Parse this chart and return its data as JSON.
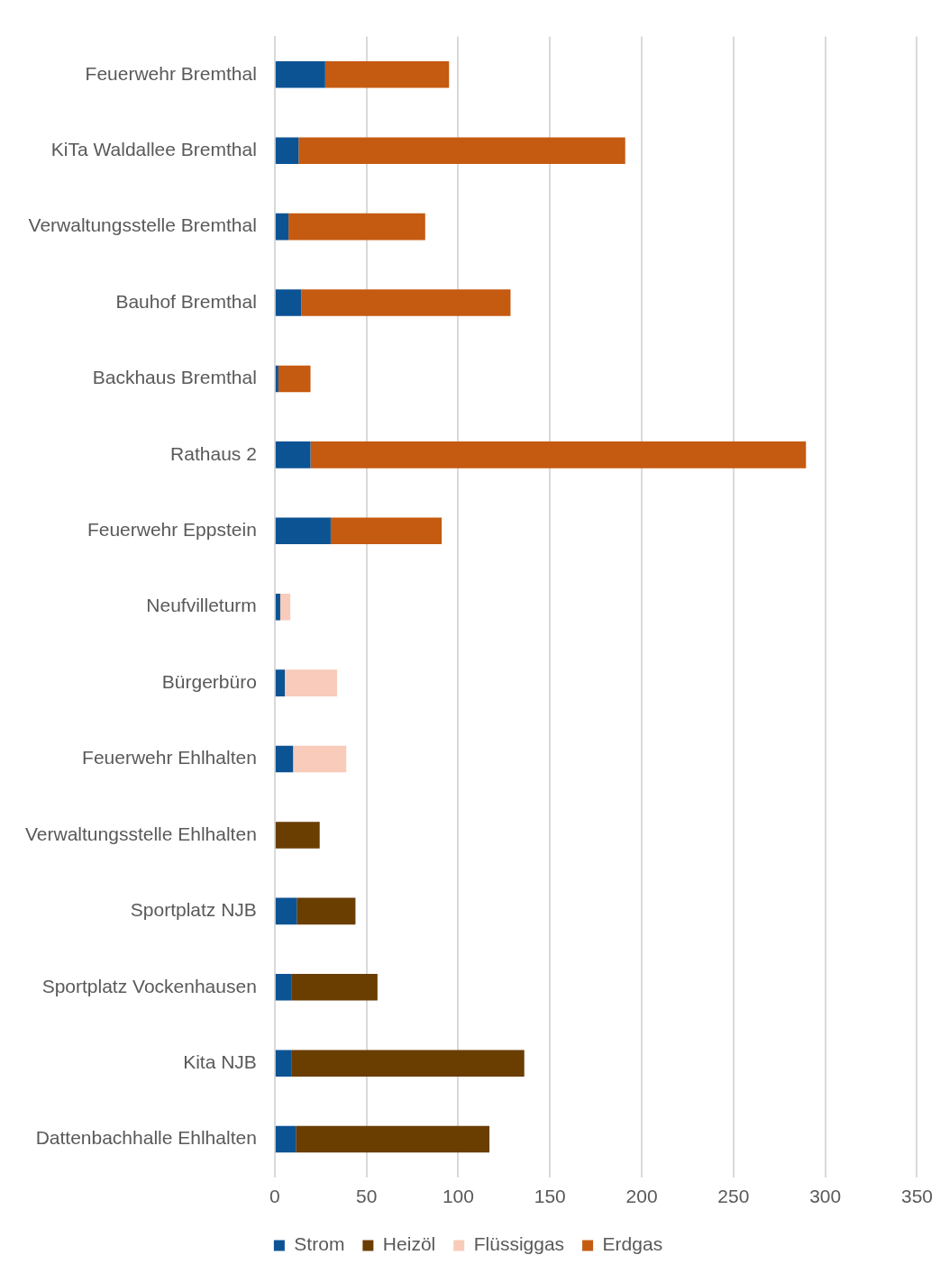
{
  "chart_data": {
    "type": "bar",
    "orientation": "horizontal",
    "stacked": true,
    "categories": [
      "Feuerwehr Bremthal",
      "KiTa Waldallee Bremthal",
      "Verwaltungsstelle Bremthal",
      "Bauhof Bremthal",
      "Backhaus Bremthal",
      "Rathaus 2",
      "Feuerwehr Eppstein",
      "Neufvilleturm",
      "Bürgerbüro",
      "Feuerwehr Ehlhalten",
      "Verwaltungsstelle Ehlhalten",
      "Sportplatz NJB",
      "Sportplatz Vockenhausen",
      "Kita NJB",
      "Dattenbachhalle Ehlhalten"
    ],
    "series": [
      {
        "name": "Strom",
        "color": "#0c5394",
        "values": [
          27.5,
          13,
          7.5,
          14.5,
          2,
          19.5,
          30.5,
          3,
          5.5,
          10,
          null,
          12,
          9,
          9,
          11.5
        ]
      },
      {
        "name": "Heizöl",
        "color": "#6a3d00",
        "values": [
          null,
          null,
          null,
          null,
          null,
          null,
          null,
          null,
          null,
          null,
          24.5,
          32,
          47,
          127,
          105.5
        ]
      },
      {
        "name": "Flüssiggas",
        "color": "#f8cbbb",
        "values": [
          null,
          null,
          null,
          null,
          null,
          null,
          null,
          5.5,
          28.5,
          29,
          null,
          null,
          null,
          null,
          null
        ]
      },
      {
        "name": "Erdgas",
        "color": "#c55a11",
        "values": [
          67.5,
          178,
          74.5,
          114,
          17.5,
          270,
          60.5,
          null,
          null,
          null,
          null,
          null,
          null,
          null,
          null
        ]
      }
    ],
    "xlim": [
      0,
      350
    ],
    "xticks": [
      0,
      50,
      100,
      150,
      200,
      250,
      300,
      350
    ],
    "grid": "x",
    "legend": "bottom"
  }
}
